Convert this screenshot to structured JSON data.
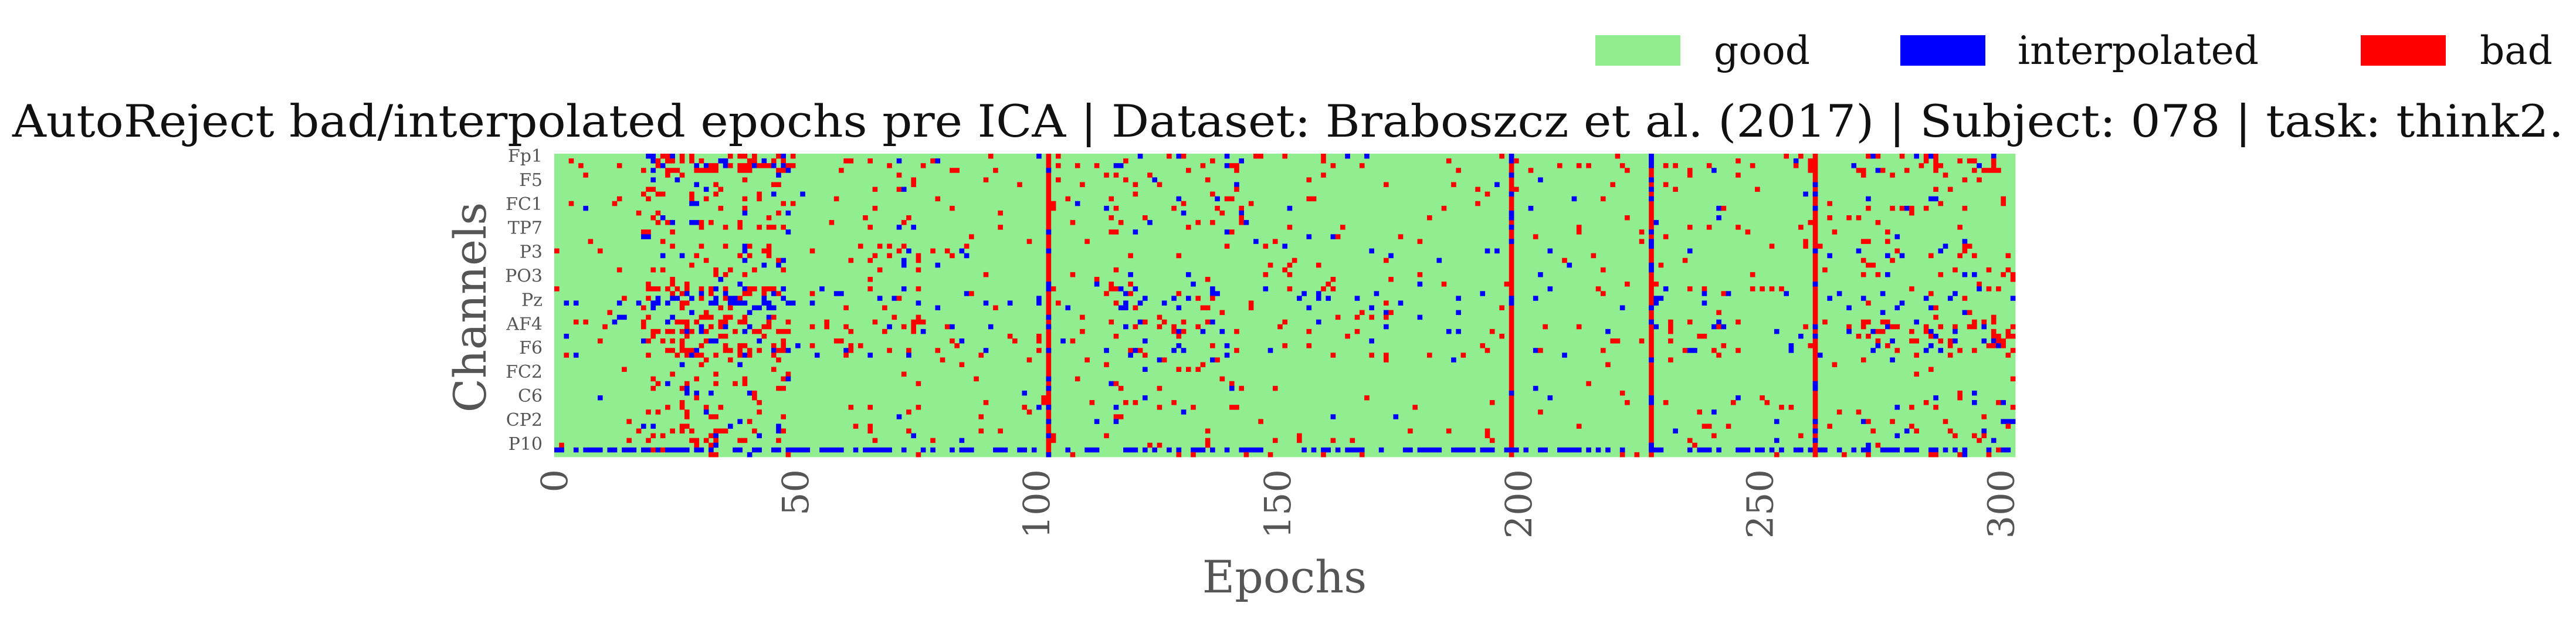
{
  "chart_data": {
    "type": "heatmap",
    "title": "AutoReject bad/interpolated epochs pre ICA | Dataset: Braboszcz et al. (2017) | Subject: 078 | task: think2.",
    "xlabel": "Epochs",
    "ylabel": "Channels",
    "legend_position": "top-right",
    "legend": [
      {
        "label": "good",
        "color": "#90ee90"
      },
      {
        "label": "interpolated",
        "color": "#0000ff"
      },
      {
        "label": "bad",
        "color": "#ff0000"
      }
    ],
    "x_ticks": [
      "0",
      "50",
      "100",
      "150",
      "200",
      "250",
      "300"
    ],
    "xlim": [
      0,
      303
    ],
    "y_tick_labels": [
      "Fp1",
      "F5",
      "FC1",
      "TP7",
      "P3",
      "PO3",
      "Pz",
      "AF4",
      "F6",
      "FC2",
      "C6",
      "CP2",
      "P10"
    ],
    "n_epochs": 303,
    "n_channels": 64,
    "bad_epochs": [
      102,
      198,
      227,
      261
    ],
    "pattern_note": "sparse red/blue cells per channel; approximate reconstruction"
  }
}
